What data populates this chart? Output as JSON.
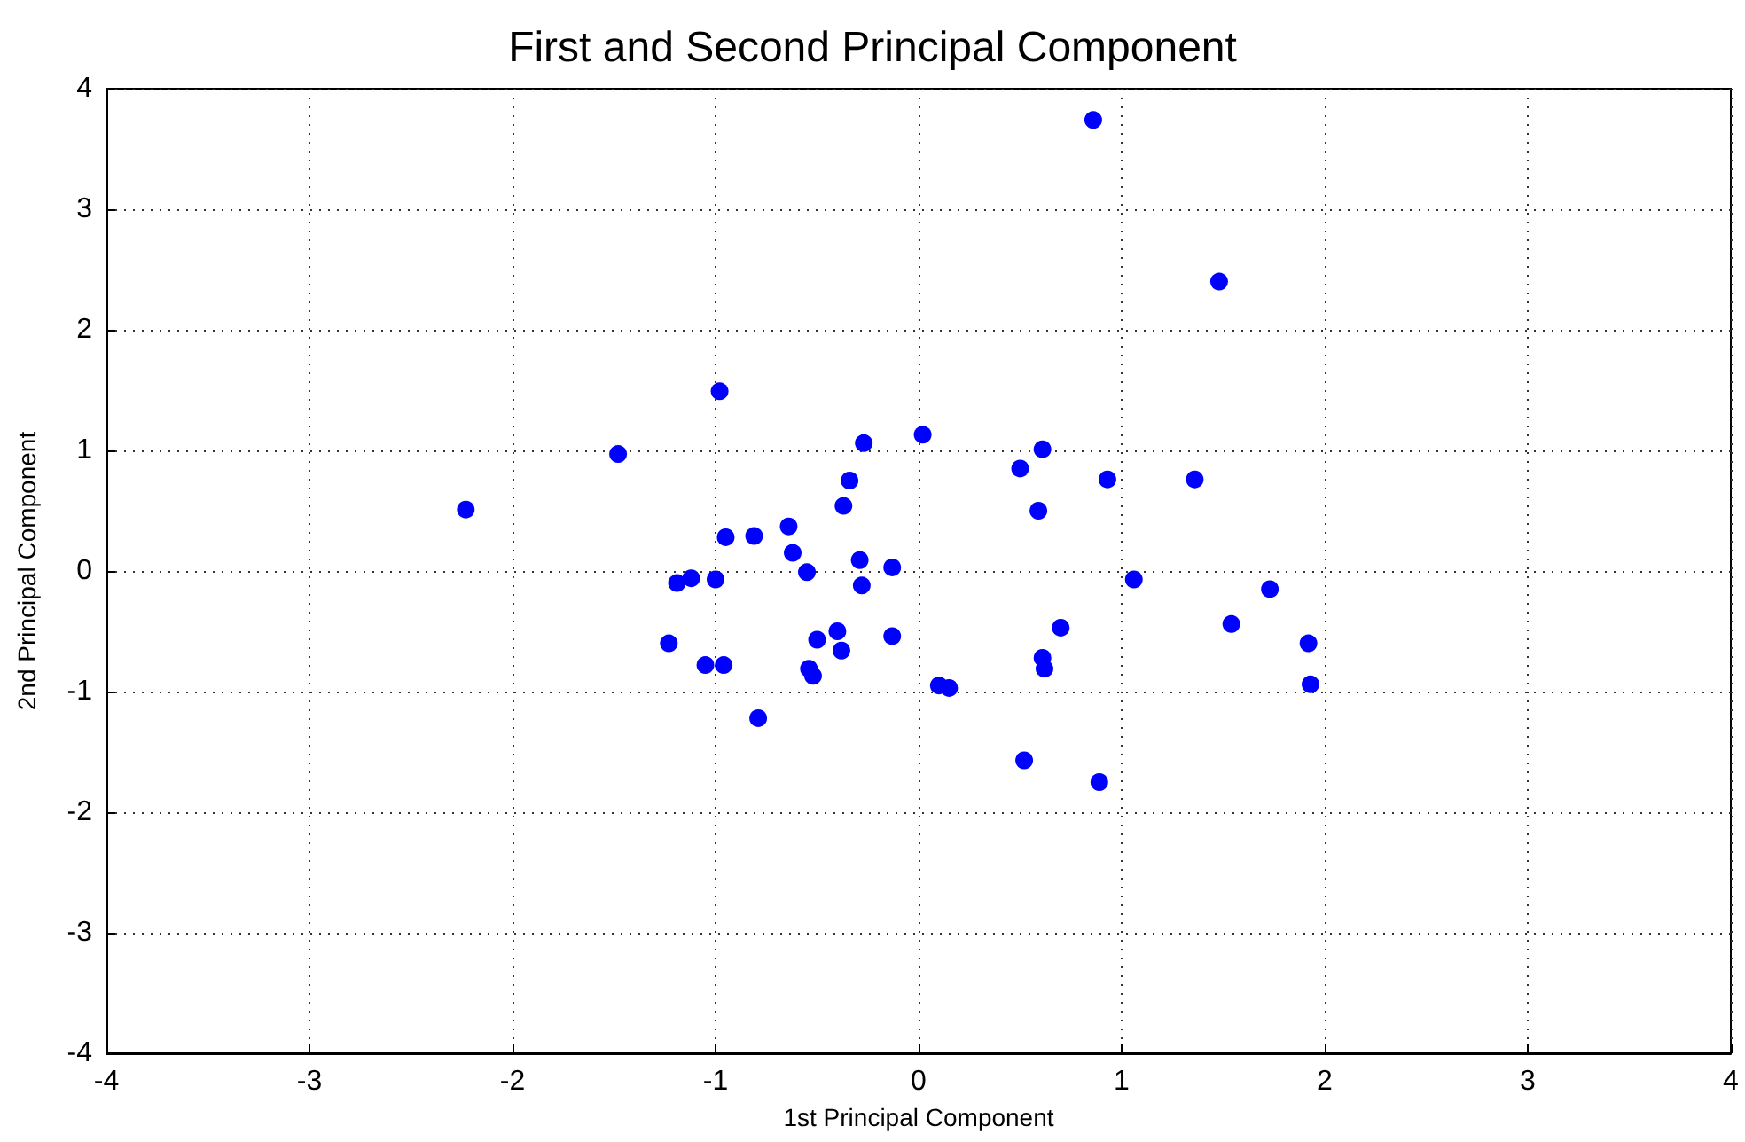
{
  "chart_data": {
    "type": "scatter",
    "title": "First and Second Principal Component",
    "xlabel": "1st Principal Component",
    "ylabel": "2nd Principal Component",
    "x": [
      -2.23,
      -1.48,
      -0.98,
      -0.95,
      -0.81,
      -0.64,
      -0.62,
      -0.55,
      -1.19,
      -1.12,
      -1.0,
      -1.23,
      -1.05,
      -0.96,
      -0.79,
      -0.54,
      -0.52,
      -0.5,
      -0.4,
      -0.38,
      -0.37,
      -0.34,
      -0.27,
      -0.29,
      -0.28,
      -0.13,
      -0.13,
      0.02,
      0.1,
      0.15,
      0.5,
      0.61,
      0.59,
      0.93,
      0.86,
      1.48,
      1.36,
      1.06,
      1.73,
      1.54,
      1.92,
      1.93,
      0.7,
      0.61,
      0.62,
      0.52,
      0.89
    ],
    "values": [
      0.51,
      0.97,
      1.49,
      0.28,
      0.29,
      0.37,
      0.15,
      -0.01,
      -0.1,
      -0.06,
      -0.07,
      -0.6,
      -0.78,
      -0.78,
      -1.22,
      -0.81,
      -0.87,
      -0.57,
      -0.5,
      -0.66,
      0.54,
      0.75,
      1.06,
      0.09,
      -0.12,
      0.03,
      -0.54,
      1.13,
      -0.95,
      -0.97,
      0.85,
      1.01,
      0.5,
      0.76,
      3.74,
      2.4,
      0.76,
      -0.07,
      -0.15,
      -0.44,
      -0.6,
      -0.94,
      -0.47,
      -0.72,
      -0.81,
      -1.57,
      -1.75
    ],
    "color": "#0000ff",
    "marker": "circle",
    "grid": true,
    "xlim": [
      -4,
      4
    ],
    "ylim": [
      -4,
      4
    ],
    "xticks": [
      -4,
      -3,
      -2,
      -1,
      0,
      1,
      2,
      3,
      4
    ],
    "yticks": [
      -4,
      -3,
      -2,
      -1,
      0,
      1,
      2,
      3,
      4
    ]
  }
}
